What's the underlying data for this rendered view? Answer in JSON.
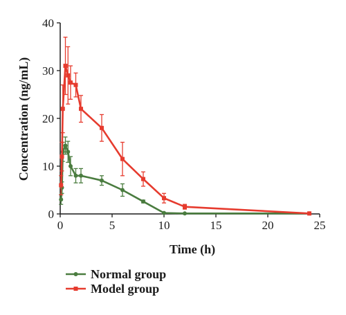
{
  "chart_data": {
    "type": "line",
    "title": "",
    "xlabel": "Time (h)",
    "ylabel": "Concentration (ng/mL)",
    "xlim": [
      0,
      25
    ],
    "ylim": [
      0,
      40
    ],
    "xticks": [
      0,
      5,
      10,
      15,
      20,
      25
    ],
    "yticks": [
      0,
      10,
      20,
      30,
      40
    ],
    "xtick_labels": [
      "0",
      "5",
      "10",
      "15",
      "20",
      "25"
    ],
    "ytick_labels": [
      "0",
      "10",
      "20",
      "30",
      "40"
    ],
    "grid": false,
    "legend_position": "bottom-left",
    "series": [
      {
        "name": "Normal group",
        "color": "#4a7c3f",
        "marker": "circle",
        "x": [
          0.083,
          0.167,
          0.25,
          0.5,
          0.75,
          1.0,
          1.5,
          2.0,
          4.0,
          6.0,
          8.0,
          10.0,
          12.0,
          24.0
        ],
        "y": [
          3.0,
          5.5,
          13.0,
          14.3,
          13.0,
          10.0,
          8.0,
          8.0,
          7.0,
          5.0,
          2.6,
          0.2,
          0.1,
          0.1
        ],
        "error": [
          1.0,
          1.2,
          2.0,
          1.8,
          2.2,
          2.0,
          1.5,
          1.5,
          1.0,
          1.3,
          0.3,
          0.1,
          0.1,
          0.1
        ]
      },
      {
        "name": "Model group",
        "color": "#e63b2e",
        "marker": "square",
        "x": [
          0.083,
          0.167,
          0.25,
          0.5,
          0.75,
          1.0,
          1.5,
          2.0,
          4.0,
          6.0,
          8.0,
          10.0,
          12.0,
          24.0
        ],
        "y": [
          6.0,
          12.0,
          22.0,
          31.0,
          29.0,
          27.5,
          27.0,
          22.0,
          18.0,
          11.5,
          7.3,
          3.3,
          1.5,
          0.1
        ],
        "error": [
          2.0,
          3.0,
          5.0,
          6.0,
          6.0,
          3.5,
          2.5,
          2.8,
          2.8,
          3.5,
          1.5,
          1.0,
          0.5,
          0.2
        ]
      }
    ]
  }
}
